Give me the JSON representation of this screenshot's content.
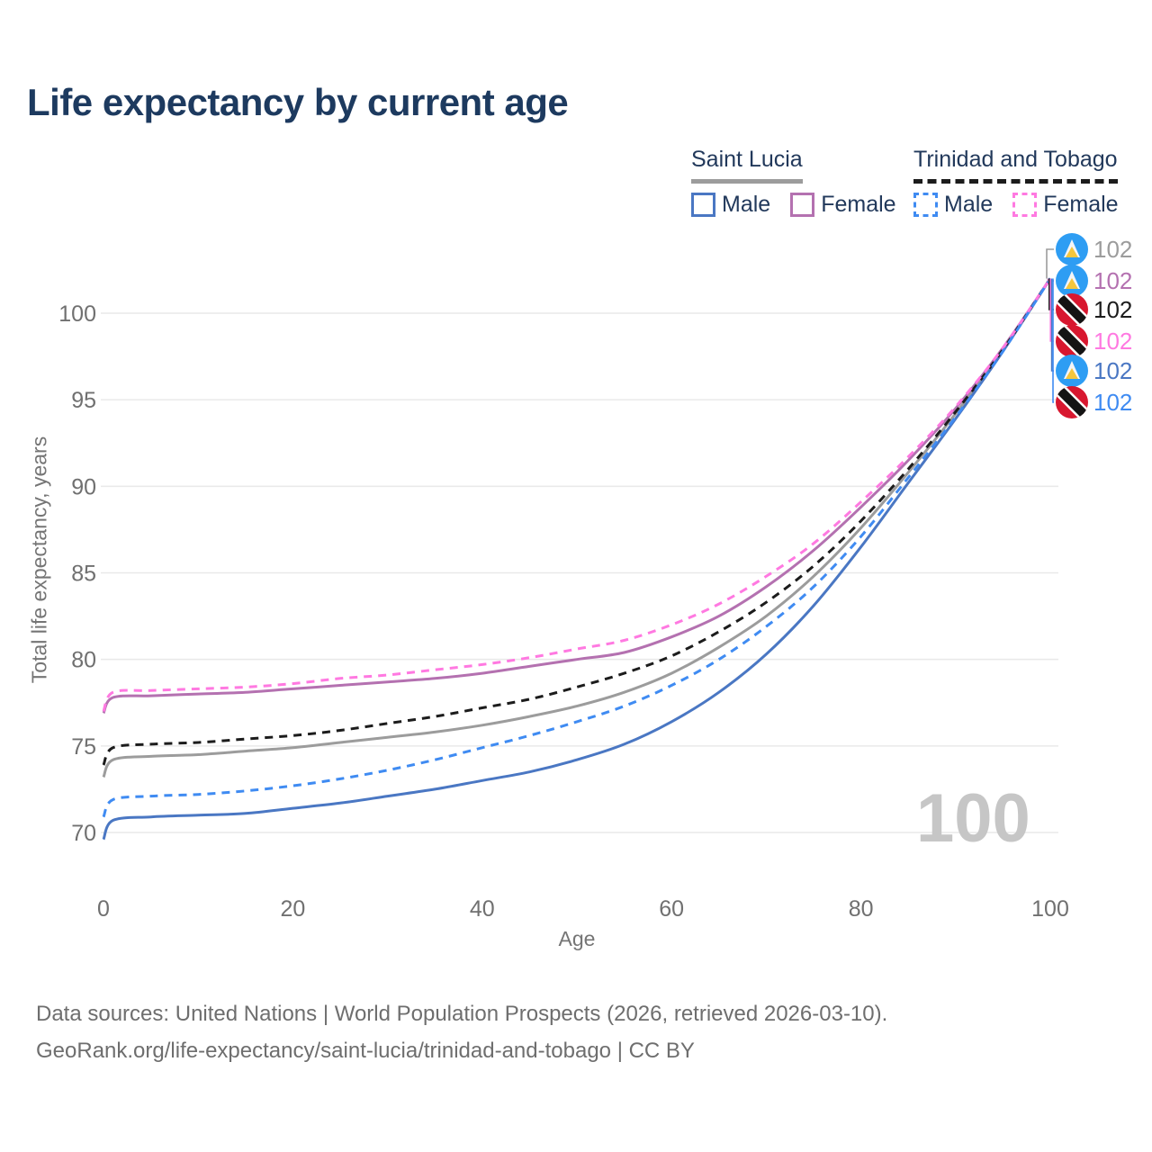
{
  "header": {
    "title": "Life expectancy by current age"
  },
  "legend": {
    "groups": [
      {
        "label": "Saint Lucia",
        "line_style": "solid",
        "underline_color": "#9c9c9c",
        "items": [
          {
            "label": "Male",
            "color": "#4a77c3"
          },
          {
            "label": "Female",
            "color": "#b471b0"
          }
        ]
      },
      {
        "label": "Trinidad and Tobago",
        "line_style": "dashed",
        "underline_color": "#1c1c1c",
        "items": [
          {
            "label": "Male",
            "color": "#3f8bf2"
          },
          {
            "label": "Female",
            "color": "#ff79e1"
          }
        ]
      }
    ]
  },
  "chart_data": {
    "type": "line",
    "title": "Life expectancy by current age",
    "xlabel": "Age",
    "ylabel": "Total life expectancy, years",
    "xlim": [
      0,
      100
    ],
    "ylim": [
      69,
      103
    ],
    "xticks": [
      0,
      20,
      40,
      60,
      80,
      100
    ],
    "yticks": [
      70,
      75,
      80,
      85,
      90,
      95,
      100
    ],
    "grid": "horizontal-only",
    "legend_position": "top-right",
    "watermark": "100",
    "ages": [
      0,
      1,
      5,
      10,
      15,
      20,
      25,
      30,
      35,
      40,
      45,
      50,
      55,
      60,
      65,
      70,
      75,
      80,
      85,
      90,
      95,
      100
    ],
    "series": [
      {
        "name": "Saint Lucia total",
        "country": "Saint Lucia",
        "sex": "total",
        "color": "#9c9c9c",
        "dashed": false,
        "values": [
          73.2,
          74.2,
          74.4,
          74.5,
          74.7,
          74.9,
          75.2,
          75.5,
          75.8,
          76.2,
          76.7,
          77.3,
          78.1,
          79.2,
          80.7,
          82.5,
          84.8,
          87.6,
          90.8,
          94.2,
          97.9,
          102
        ]
      },
      {
        "name": "Saint Lucia female",
        "country": "Saint Lucia",
        "sex": "female",
        "color": "#b471b0",
        "dashed": false,
        "values": [
          76.9,
          77.8,
          77.9,
          78.0,
          78.1,
          78.3,
          78.5,
          78.7,
          78.9,
          79.2,
          79.6,
          80.0,
          80.4,
          81.3,
          82.5,
          84.2,
          86.3,
          88.8,
          91.5,
          94.5,
          98.0,
          102
        ]
      },
      {
        "name": "Saint Lucia male",
        "country": "Saint Lucia",
        "sex": "male",
        "color": "#4a77c3",
        "dashed": false,
        "values": [
          69.6,
          70.7,
          70.9,
          71.0,
          71.1,
          71.4,
          71.7,
          72.1,
          72.5,
          73.0,
          73.5,
          74.2,
          75.1,
          76.4,
          78.1,
          80.3,
          83.1,
          86.5,
          90.2,
          93.9,
          97.8,
          102
        ]
      },
      {
        "name": "Trinidad and Tobago total",
        "country": "Trinidad and Tobago",
        "sex": "total",
        "color": "#1c1c1c",
        "dashed": true,
        "values": [
          73.9,
          74.9,
          75.1,
          75.2,
          75.4,
          75.6,
          75.9,
          76.3,
          76.7,
          77.2,
          77.7,
          78.4,
          79.2,
          80.2,
          81.6,
          83.3,
          85.4,
          88.0,
          91.0,
          94.3,
          97.9,
          102
        ]
      },
      {
        "name": "Trinidad and Tobago female",
        "country": "Trinidad and Tobago",
        "sex": "female",
        "color": "#ff79e1",
        "dashed": true,
        "values": [
          77.0,
          78.1,
          78.2,
          78.3,
          78.4,
          78.6,
          78.9,
          79.1,
          79.4,
          79.7,
          80.1,
          80.6,
          81.1,
          82.0,
          83.2,
          84.8,
          86.7,
          89.1,
          91.7,
          94.6,
          98.0,
          102
        ]
      },
      {
        "name": "Trinidad and Tobago male",
        "country": "Trinidad and Tobago",
        "sex": "male",
        "color": "#3f8bf2",
        "dashed": true,
        "values": [
          70.9,
          71.9,
          72.1,
          72.2,
          72.4,
          72.7,
          73.1,
          73.6,
          74.2,
          74.9,
          75.6,
          76.4,
          77.3,
          78.5,
          80.0,
          81.9,
          84.2,
          87.1,
          90.5,
          94.0,
          97.8,
          102
        ]
      }
    ],
    "end_labels": [
      {
        "value": "102",
        "color": "#9c9c9c",
        "flag": "saint-lucia",
        "series": "Saint Lucia total"
      },
      {
        "value": "102",
        "color": "#b471b0",
        "flag": "saint-lucia",
        "series": "Saint Lucia female"
      },
      {
        "value": "102",
        "color": "#1c1c1c",
        "flag": "trinidad-and-tobago",
        "series": "Trinidad and Tobago total"
      },
      {
        "value": "102",
        "color": "#ff79e1",
        "flag": "trinidad-and-tobago",
        "series": "Trinidad and Tobago female"
      },
      {
        "value": "102",
        "color": "#4a77c3",
        "flag": "saint-lucia",
        "series": "Saint Lucia male"
      },
      {
        "value": "102",
        "color": "#3f8bf2",
        "flag": "trinidad-and-tobago",
        "series": "Trinidad and Tobago male"
      }
    ]
  },
  "footer": {
    "line1": "Data sources: United Nations | World Population Prospects (2026, retrieved 2026-03-10).",
    "line2": "GeoRank.org/life-expectancy/saint-lucia/trinidad-and-tobago | CC BY"
  },
  "colors": {
    "title": "#1d3a5f",
    "legend_text": "#22395b",
    "axis_text": "#707070",
    "grid": "#e9e9e9",
    "watermark": "#c6c6c6",
    "footer_text": "#6e6e6e"
  }
}
